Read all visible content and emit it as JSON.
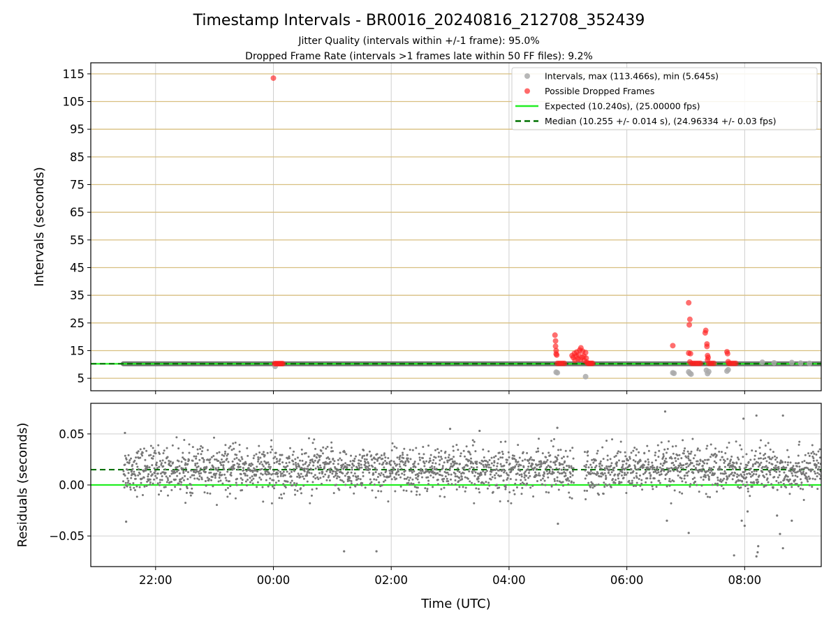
{
  "chart_data": [
    {
      "type": "scatter",
      "title": "Timestamp Intervals - BR0016_20240816_212708_352439",
      "subtitle_lines": [
        "Jitter Quality (intervals within +/-1 frame): 95.0%",
        "Dropped Frame Rate (intervals >1 frames late within 50 FF files): 9.2%"
      ],
      "ylabel": "Intervals (seconds)",
      "xlabel": "",
      "xlim_hours": [
        -3.1,
        9.3
      ],
      "ylim": [
        0.5,
        119
      ],
      "y_ticks": [
        5,
        15,
        25,
        35,
        45,
        55,
        65,
        75,
        85,
        95,
        105,
        115
      ],
      "y_tick_labels": [
        "5",
        "15",
        "25",
        "35",
        "45",
        "55",
        "65",
        "75",
        "85",
        "95",
        "105",
        "115"
      ],
      "x_ticks_hours": [
        -2,
        0,
        2,
        4,
        6,
        8
      ],
      "grid": true,
      "legend_placement": "top-right",
      "legend": [
        {
          "label": "Intervals, max (113.466s), min (5.645s)",
          "kind": "marker",
          "color": "#aaaaaa"
        },
        {
          "label": "Possible Dropped Frames",
          "kind": "marker",
          "color": "#ff5a5a"
        },
        {
          "label": "Expected (10.240s), (25.00000 fps)",
          "kind": "line",
          "color": "#22ee22"
        },
        {
          "label": "Median (10.255 +/- 0.014 s), (24.96334 +/- 0.03 fps)",
          "kind": "dashed-line",
          "color": "#007000"
        }
      ],
      "expected_value": 10.24,
      "median_value": 10.255,
      "interval_band": {
        "x_start": -2.55,
        "x_end": 9.3,
        "y": 10.25
      },
      "gray_outliers": [
        {
          "x": 4.8,
          "y": 7.2
        },
        {
          "x": 4.82,
          "y": 7.0
        },
        {
          "x": 5.3,
          "y": 5.6
        },
        {
          "x": 6.78,
          "y": 7.0
        },
        {
          "x": 6.8,
          "y": 6.8
        },
        {
          "x": 7.05,
          "y": 7.3
        },
        {
          "x": 7.07,
          "y": 6.8
        },
        {
          "x": 7.09,
          "y": 6.5
        },
        {
          "x": 7.35,
          "y": 7.9
        },
        {
          "x": 7.37,
          "y": 6.7
        },
        {
          "x": 7.39,
          "y": 7.4
        },
        {
          "x": 7.7,
          "y": 7.6
        },
        {
          "x": 7.72,
          "y": 8.1
        },
        {
          "x": 0.03,
          "y": 9.3
        },
        {
          "x": 8.3,
          "y": 10.8
        },
        {
          "x": 8.5,
          "y": 10.6
        },
        {
          "x": 8.8,
          "y": 10.7
        },
        {
          "x": 8.95,
          "y": 10.5
        },
        {
          "x": 9.1,
          "y": 10.4
        }
      ],
      "dropped_frames": [
        {
          "x": 0.0,
          "y": 113.466
        },
        {
          "x": 0.02,
          "y": 10.3
        },
        {
          "x": 0.04,
          "y": 10.3
        },
        {
          "x": 0.06,
          "y": 10.3
        },
        {
          "x": 0.08,
          "y": 10.3
        },
        {
          "x": 0.1,
          "y": 10.3
        },
        {
          "x": 0.12,
          "y": 10.3
        },
        {
          "x": 0.14,
          "y": 10.3
        },
        {
          "x": 0.16,
          "y": 10.3
        },
        {
          "x": 4.78,
          "y": 20.6
        },
        {
          "x": 4.79,
          "y": 18.5
        },
        {
          "x": 4.79,
          "y": 16.6
        },
        {
          "x": 4.8,
          "y": 15.0
        },
        {
          "x": 4.8,
          "y": 13.8
        },
        {
          "x": 4.81,
          "y": 13.4
        },
        {
          "x": 4.82,
          "y": 10.4
        },
        {
          "x": 4.85,
          "y": 10.4
        },
        {
          "x": 4.88,
          "y": 10.4
        },
        {
          "x": 4.91,
          "y": 10.4
        },
        {
          "x": 4.94,
          "y": 10.4
        },
        {
          "x": 5.07,
          "y": 13.2
        },
        {
          "x": 5.09,
          "y": 12.5
        },
        {
          "x": 5.11,
          "y": 14.0
        },
        {
          "x": 5.12,
          "y": 11.5
        },
        {
          "x": 5.14,
          "y": 13.0
        },
        {
          "x": 5.15,
          "y": 14.5
        },
        {
          "x": 5.17,
          "y": 12.0
        },
        {
          "x": 5.18,
          "y": 13.5
        },
        {
          "x": 5.2,
          "y": 15.2
        },
        {
          "x": 5.21,
          "y": 11.8
        },
        {
          "x": 5.22,
          "y": 16.0
        },
        {
          "x": 5.24,
          "y": 12.6
        },
        {
          "x": 5.25,
          "y": 14.8
        },
        {
          "x": 5.27,
          "y": 13.0
        },
        {
          "x": 5.28,
          "y": 11.4
        },
        {
          "x": 5.3,
          "y": 14.3
        },
        {
          "x": 5.31,
          "y": 12.3
        },
        {
          "x": 5.32,
          "y": 10.8
        },
        {
          "x": 5.34,
          "y": 10.4
        },
        {
          "x": 5.36,
          "y": 10.4
        },
        {
          "x": 5.38,
          "y": 10.4
        },
        {
          "x": 5.4,
          "y": 10.4
        },
        {
          "x": 5.42,
          "y": 10.4
        },
        {
          "x": 6.78,
          "y": 16.8
        },
        {
          "x": 7.05,
          "y": 32.3
        },
        {
          "x": 7.07,
          "y": 26.3
        },
        {
          "x": 7.06,
          "y": 24.3
        },
        {
          "x": 7.05,
          "y": 14.1
        },
        {
          "x": 7.08,
          "y": 13.9
        },
        {
          "x": 7.07,
          "y": 10.9
        },
        {
          "x": 7.1,
          "y": 10.4
        },
        {
          "x": 7.13,
          "y": 10.4
        },
        {
          "x": 7.16,
          "y": 10.4
        },
        {
          "x": 7.19,
          "y": 10.4
        },
        {
          "x": 7.22,
          "y": 10.4
        },
        {
          "x": 7.25,
          "y": 10.4
        },
        {
          "x": 7.34,
          "y": 22.3
        },
        {
          "x": 7.33,
          "y": 21.4
        },
        {
          "x": 7.36,
          "y": 17.4
        },
        {
          "x": 7.36,
          "y": 16.5
        },
        {
          "x": 7.37,
          "y": 13.2
        },
        {
          "x": 7.38,
          "y": 12.5
        },
        {
          "x": 7.37,
          "y": 11.6
        },
        {
          "x": 7.39,
          "y": 10.4
        },
        {
          "x": 7.42,
          "y": 10.4
        },
        {
          "x": 7.45,
          "y": 10.4
        },
        {
          "x": 7.48,
          "y": 10.4
        },
        {
          "x": 7.7,
          "y": 14.6
        },
        {
          "x": 7.71,
          "y": 13.9
        },
        {
          "x": 7.72,
          "y": 11.0
        },
        {
          "x": 7.73,
          "y": 10.4
        },
        {
          "x": 7.76,
          "y": 10.4
        },
        {
          "x": 7.79,
          "y": 10.4
        },
        {
          "x": 7.82,
          "y": 10.4
        },
        {
          "x": 7.85,
          "y": 10.4
        }
      ]
    },
    {
      "type": "scatter",
      "title": "",
      "xlabel": "Time (UTC)",
      "ylabel": "Residuals (seconds)",
      "xlim_hours": [
        -3.1,
        9.3
      ],
      "ylim": [
        -0.08,
        0.08
      ],
      "y_ticks": [
        -0.05,
        0.0,
        0.05
      ],
      "y_tick_labels": [
        "−0.05",
        "0.00",
        "0.05"
      ],
      "x_ticks_hours": [
        -2,
        0,
        2,
        4,
        6,
        8
      ],
      "x_tick_labels": [
        "22:00",
        "00:00",
        "02:00",
        "04:00",
        "06:00",
        "08:00"
      ],
      "grid": true,
      "expected_residual": 0.0,
      "median_residual": 0.015,
      "residual_distribution": {
        "x_start": -2.55,
        "x_end": 9.3,
        "center": 0.015,
        "spread": 0.011,
        "gaps": [
          [
            5.1,
            5.28
          ]
        ],
        "point_color": "#777777"
      },
      "residual_outliers": [
        {
          "x": -2.5,
          "y": -0.036
        },
        {
          "x": -2.52,
          "y": 0.051
        },
        {
          "x": 1.2,
          "y": -0.065
        },
        {
          "x": 1.75,
          "y": -0.065
        },
        {
          "x": 4.83,
          "y": -0.038
        },
        {
          "x": 4.82,
          "y": 0.056
        },
        {
          "x": 3.0,
          "y": 0.055
        },
        {
          "x": 3.5,
          "y": 0.053
        },
        {
          "x": 6.65,
          "y": 0.072
        },
        {
          "x": 6.68,
          "y": -0.035
        },
        {
          "x": 7.05,
          "y": -0.047
        },
        {
          "x": 7.82,
          "y": -0.069
        },
        {
          "x": 7.98,
          "y": 0.065
        },
        {
          "x": 8.2,
          "y": 0.068
        },
        {
          "x": 8.2,
          "y": -0.07
        },
        {
          "x": 8.22,
          "y": -0.066
        },
        {
          "x": 8.23,
          "y": -0.06
        },
        {
          "x": 7.95,
          "y": -0.035
        },
        {
          "x": 8.0,
          "y": -0.04
        },
        {
          "x": 8.05,
          "y": -0.026
        },
        {
          "x": 8.65,
          "y": 0.068
        },
        {
          "x": 8.6,
          "y": -0.048
        },
        {
          "x": 8.65,
          "y": -0.062
        },
        {
          "x": 8.55,
          "y": -0.03
        },
        {
          "x": 8.8,
          "y": -0.035
        }
      ]
    }
  ]
}
